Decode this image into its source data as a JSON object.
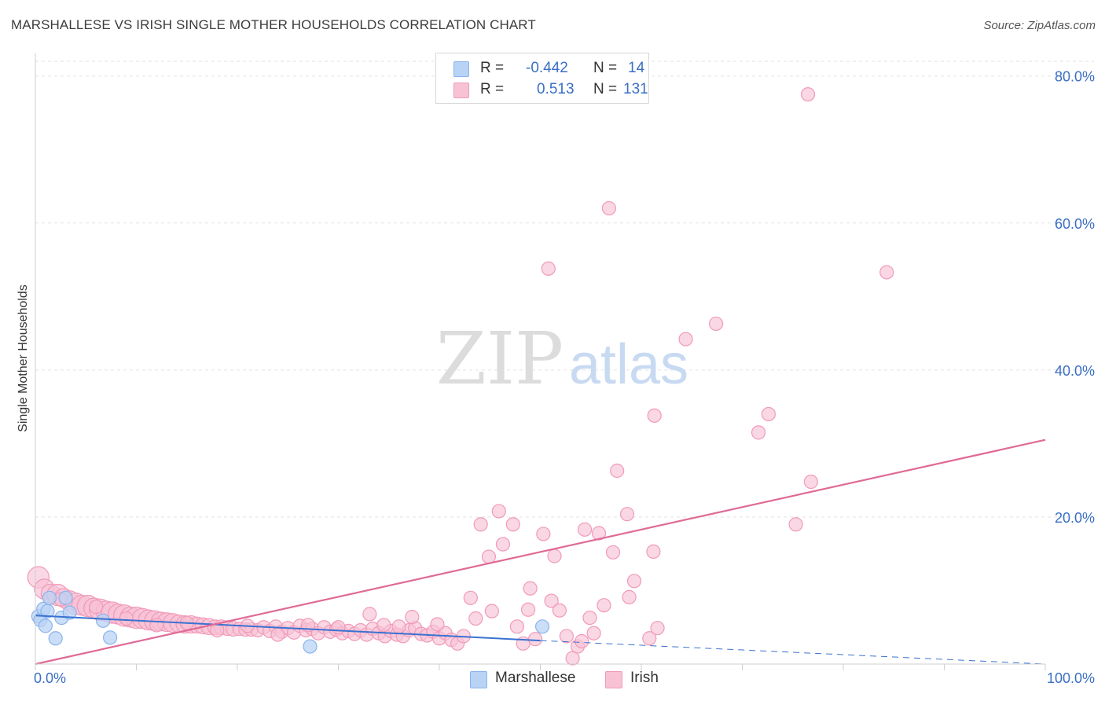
{
  "chart_data": {
    "type": "scatter",
    "title": "MARSHALLESE VS IRISH SINGLE MOTHER HOUSEHOLDS CORRELATION CHART",
    "source": "Source: ZipAtlas.com",
    "xlabel": "",
    "ylabel": "Single Mother Households",
    "xlim": [
      0,
      100
    ],
    "ylim": [
      0,
      82
    ],
    "x_tick_labels": {
      "left": "0.0%",
      "right": "100.0%"
    },
    "y_ticks": [
      {
        "value": 20,
        "label": "20.0%"
      },
      {
        "value": 40,
        "label": "40.0%"
      },
      {
        "value": 60,
        "label": "60.0%"
      },
      {
        "value": 80,
        "label": "80.0%"
      }
    ],
    "watermark": {
      "part1": "ZIP",
      "part2": "atlas"
    },
    "legend": {
      "rows": [
        {
          "r_label": "R =",
          "r_value": "-0.442",
          "n_label": "N =",
          "n_value": "14"
        },
        {
          "r_label": "R =",
          "r_value": "0.513",
          "n_label": "N =",
          "n_value": "131"
        }
      ]
    },
    "series": [
      {
        "name": "Marshallese",
        "color": "#8ab4ec",
        "fill": "#b9d3f5",
        "line_color": "#3a72d0",
        "trend": {
          "x0": 0,
          "y0": 6.6,
          "x1": 50,
          "y1": 3.2,
          "dash_x1": 100,
          "dash_y1": 0.0
        },
        "points": [
          [
            0.3,
            6.5,
            1.0
          ],
          [
            0.5,
            6.0,
            1.0
          ],
          [
            0.8,
            7.5,
            1.0
          ],
          [
            1.0,
            5.2,
            1.0
          ],
          [
            1.2,
            7.2,
            1.0
          ],
          [
            1.4,
            9.0,
            1.0
          ],
          [
            2.0,
            3.5,
            1.0
          ],
          [
            2.6,
            6.3,
            1.0
          ],
          [
            3.0,
            9.0,
            1.0
          ],
          [
            3.4,
            7.0,
            1.0
          ],
          [
            6.7,
            5.9,
            1.0
          ],
          [
            7.4,
            3.6,
            1.0
          ],
          [
            27.2,
            2.4,
            1.0
          ],
          [
            50.2,
            5.1,
            1.0
          ]
        ]
      },
      {
        "name": "Irish",
        "color": "#f19ab8",
        "fill": "#f8c2d5",
        "line_color": "#e06a96",
        "trend": {
          "x0": 0,
          "y0": 0.0,
          "x1": 100,
          "y1": 30.5
        },
        "points": [
          [
            0.3,
            11.8,
            1.6
          ],
          [
            0.9,
            10.2,
            1.5
          ],
          [
            1.5,
            9.6,
            1.4
          ],
          [
            2.2,
            9.4,
            1.6
          ],
          [
            2.8,
            9.0,
            1.4
          ],
          [
            3.4,
            8.6,
            1.5
          ],
          [
            4.0,
            8.2,
            1.6
          ],
          [
            4.6,
            8.0,
            1.5
          ],
          [
            5.2,
            7.9,
            1.6
          ],
          [
            5.8,
            7.6,
            1.5
          ],
          [
            6.4,
            7.4,
            1.6
          ],
          [
            7.0,
            7.2,
            1.5
          ],
          [
            7.6,
            7.0,
            1.6
          ],
          [
            8.2,
            6.8,
            1.5
          ],
          [
            8.8,
            6.6,
            1.6
          ],
          [
            9.4,
            6.4,
            1.5
          ],
          [
            10.0,
            6.3,
            1.6
          ],
          [
            10.6,
            6.2,
            1.5
          ],
          [
            11.2,
            6.0,
            1.5
          ],
          [
            11.8,
            5.9,
            1.5
          ],
          [
            12.4,
            5.8,
            1.4
          ],
          [
            13.0,
            5.7,
            1.4
          ],
          [
            13.6,
            5.6,
            1.4
          ],
          [
            14.2,
            5.5,
            1.3
          ],
          [
            14.8,
            5.4,
            1.3
          ],
          [
            15.4,
            5.4,
            1.3
          ],
          [
            16.0,
            5.3,
            1.2
          ],
          [
            16.6,
            5.2,
            1.2
          ],
          [
            17.2,
            5.1,
            1.2
          ],
          [
            17.8,
            5.0,
            1.1
          ],
          [
            18.4,
            5.0,
            1.1
          ],
          [
            19.0,
            4.9,
            1.1
          ],
          [
            19.6,
            4.8,
            1.1
          ],
          [
            20.2,
            4.8,
            1.0
          ],
          [
            20.8,
            4.7,
            1.0
          ],
          [
            21.4,
            4.7,
            1.0
          ],
          [
            22.0,
            4.6,
            1.0
          ],
          [
            22.6,
            5.0,
            1.0
          ],
          [
            23.2,
            4.5,
            1.0
          ],
          [
            23.8,
            5.1,
            1.0
          ],
          [
            24.4,
            4.4,
            1.0
          ],
          [
            25.0,
            4.9,
            1.0
          ],
          [
            25.6,
            4.3,
            1.0
          ],
          [
            26.2,
            5.2,
            1.0
          ],
          [
            26.8,
            4.6,
            1.0
          ],
          [
            27.4,
            4.8,
            1.0
          ],
          [
            28.0,
            4.2,
            1.0
          ],
          [
            28.6,
            5.0,
            1.0
          ],
          [
            29.2,
            4.4,
            1.0
          ],
          [
            29.8,
            4.7,
            1.0
          ],
          [
            30.4,
            4.2,
            1.0
          ],
          [
            31.0,
            4.5,
            1.0
          ],
          [
            31.6,
            4.1,
            1.0
          ],
          [
            32.2,
            4.6,
            1.0
          ],
          [
            32.8,
            4.0,
            1.0
          ],
          [
            33.4,
            4.8,
            1.0
          ],
          [
            34.0,
            4.2,
            1.0
          ],
          [
            34.6,
            3.8,
            1.0
          ],
          [
            35.2,
            4.5,
            1.0
          ],
          [
            35.8,
            4.0,
            1.0
          ],
          [
            36.4,
            3.8,
            1.0
          ],
          [
            37.0,
            4.6,
            1.0
          ],
          [
            37.6,
            4.9,
            1.0
          ],
          [
            38.2,
            4.1,
            1.0
          ],
          [
            38.8,
            3.9,
            1.0
          ],
          [
            39.4,
            4.4,
            1.0
          ],
          [
            40.0,
            3.5,
            1.0
          ],
          [
            40.6,
            4.2,
            1.0
          ],
          [
            41.2,
            3.3,
            1.0
          ],
          [
            41.8,
            2.8,
            1.0
          ],
          [
            42.4,
            3.8,
            1.0
          ],
          [
            33.1,
            6.8,
            1.0
          ],
          [
            34.5,
            5.3,
            1.0
          ],
          [
            37.3,
            6.4,
            1.0
          ],
          [
            39.8,
            5.4,
            1.0
          ],
          [
            43.6,
            6.2,
            1.0
          ],
          [
            43.1,
            9.0,
            1.0
          ],
          [
            44.9,
            14.6,
            1.0
          ],
          [
            44.1,
            19.0,
            1.0
          ],
          [
            45.2,
            7.2,
            1.0
          ],
          [
            45.9,
            20.8,
            1.0
          ],
          [
            46.3,
            16.3,
            1.0
          ],
          [
            47.3,
            19.0,
            1.0
          ],
          [
            47.7,
            5.1,
            1.0
          ],
          [
            48.3,
            2.8,
            1.0
          ],
          [
            48.8,
            7.4,
            1.0
          ],
          [
            49.0,
            10.3,
            1.0
          ],
          [
            49.5,
            3.4,
            1.0
          ],
          [
            50.3,
            17.7,
            1.0
          ],
          [
            51.1,
            8.6,
            1.0
          ],
          [
            51.4,
            14.7,
            1.0
          ],
          [
            51.9,
            7.3,
            1.0
          ],
          [
            52.6,
            3.8,
            1.0
          ],
          [
            53.2,
            0.8,
            1.0
          ],
          [
            53.7,
            2.4,
            1.0
          ],
          [
            54.1,
            3.1,
            1.0
          ],
          [
            54.4,
            18.3,
            1.0
          ],
          [
            54.9,
            6.3,
            1.0
          ],
          [
            55.3,
            4.2,
            1.0
          ],
          [
            55.8,
            17.8,
            1.0
          ],
          [
            56.3,
            8.0,
            1.0
          ],
          [
            57.2,
            15.2,
            1.0
          ],
          [
            57.6,
            26.3,
            1.0
          ],
          [
            58.6,
            20.4,
            1.0
          ],
          [
            58.8,
            9.1,
            1.0
          ],
          [
            59.3,
            11.3,
            1.0
          ],
          [
            60.8,
            3.5,
            1.0
          ],
          [
            61.2,
            15.3,
            1.0
          ],
          [
            61.6,
            4.9,
            1.0
          ],
          [
            50.8,
            53.8,
            1.0
          ],
          [
            56.8,
            62.0,
            1.0
          ],
          [
            61.3,
            33.8,
            1.0
          ],
          [
            64.4,
            44.2,
            1.0
          ],
          [
            67.4,
            46.3,
            1.0
          ],
          [
            71.6,
            31.5,
            1.0
          ],
          [
            72.6,
            34.0,
            1.0
          ],
          [
            75.3,
            19.0,
            1.0
          ],
          [
            76.8,
            24.8,
            1.0
          ],
          [
            76.5,
            77.5,
            1.0
          ],
          [
            84.3,
            53.3,
            1.0
          ],
          [
            2.5,
            8.8,
            1.0
          ],
          [
            6.0,
            7.8,
            1.0
          ],
          [
            9.0,
            6.2,
            1.0
          ],
          [
            12.0,
            5.3,
            1.0
          ],
          [
            15.0,
            5.6,
            1.0
          ],
          [
            18.0,
            4.6,
            1.0
          ],
          [
            21.0,
            5.2,
            1.0
          ],
          [
            24.0,
            4.0,
            1.0
          ],
          [
            27.0,
            5.3,
            1.0
          ],
          [
            30.0,
            5.0,
            1.0
          ],
          [
            36.0,
            5.1,
            1.0
          ]
        ]
      }
    ]
  }
}
